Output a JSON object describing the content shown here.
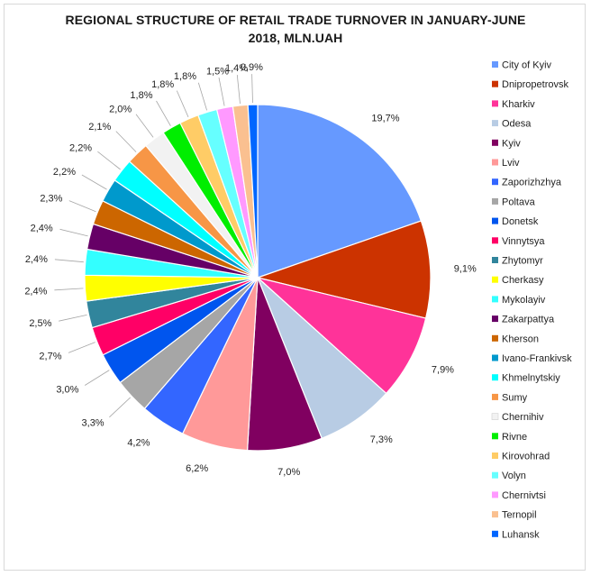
{
  "chart_data": {
    "type": "pie",
    "title_lines": [
      "REGIONAL STRUCTURE OF RETAIL TRADE TURNOVER IN JANUARY-JUNE",
      "2018, MLN.UAH"
    ],
    "legend_position": "right",
    "slices": [
      {
        "label": "City of Kyiv",
        "value": 19.7,
        "display": "19,7%",
        "color": "#6699ff"
      },
      {
        "label": "Dnipropetrovsk",
        "value": 9.1,
        "display": "9,1%",
        "color": "#cc3300"
      },
      {
        "label": "Kharkiv",
        "value": 7.9,
        "display": "7,9%",
        "color": "#ff3399"
      },
      {
        "label": "Odesa",
        "value": 7.3,
        "display": "7,3%",
        "color": "#b8cce4"
      },
      {
        "label": "Kyiv",
        "value": 7.0,
        "display": "7,0%",
        "color": "#800060"
      },
      {
        "label": "Lviv",
        "value": 6.2,
        "display": "6,2%",
        "color": "#ff9999"
      },
      {
        "label": "Zaporizhzhya",
        "value": 4.2,
        "display": "4,2%",
        "color": "#3366ff"
      },
      {
        "label": "Poltava",
        "value": 3.3,
        "display": "3,3%",
        "color": "#a6a6a6"
      },
      {
        "label": "Donetsk",
        "value": 3.0,
        "display": "3,0%",
        "color": "#0055ee"
      },
      {
        "label": "Vinnytsya",
        "value": 2.7,
        "display": "2,7%",
        "color": "#ff0066"
      },
      {
        "label": "Zhytomyr",
        "value": 2.5,
        "display": "2,5%",
        "color": "#31859c"
      },
      {
        "label": "Cherkasy",
        "value": 2.4,
        "display": "2,4%",
        "color": "#ffff00"
      },
      {
        "label": "Mykolayiv",
        "value": 2.4,
        "display": "2,4%",
        "color": "#33ffff"
      },
      {
        "label": "Zakarpattya",
        "value": 2.4,
        "display": "2,4%",
        "color": "#660066"
      },
      {
        "label": "Kherson",
        "value": 2.3,
        "display": "2,3%",
        "color": "#cc6600"
      },
      {
        "label": "Ivano-Frankivsk",
        "value": 2.2,
        "display": "2,2%",
        "color": "#0099cc"
      },
      {
        "label": "Khmelnytskiy",
        "value": 2.2,
        "display": "2,2%",
        "color": "#00ffff"
      },
      {
        "label": "Sumy",
        "value": 2.1,
        "display": "2,1%",
        "color": "#f79646"
      },
      {
        "label": "Chernihiv",
        "value": 2.0,
        "display": "2,0%",
        "color": "#f2f2f2"
      },
      {
        "label": "Rivne",
        "value": 1.8,
        "display": "1,8%",
        "color": "#00ee00"
      },
      {
        "label": "Kirovohrad",
        "value": 1.8,
        "display": "1,8%",
        "color": "#ffcc66"
      },
      {
        "label": "Volyn",
        "value": 1.8,
        "display": "1,8%",
        "color": "#66ffff"
      },
      {
        "label": "Chernivtsi",
        "value": 1.5,
        "display": "1,5%",
        "color": "#ff99ff"
      },
      {
        "label": "Ternopil",
        "value": 1.4,
        "display": "1,4%",
        "color": "#fac090"
      },
      {
        "label": "Luhansk",
        "value": 0.9,
        "display": "0,9%",
        "color": "#0066ff"
      }
    ]
  }
}
